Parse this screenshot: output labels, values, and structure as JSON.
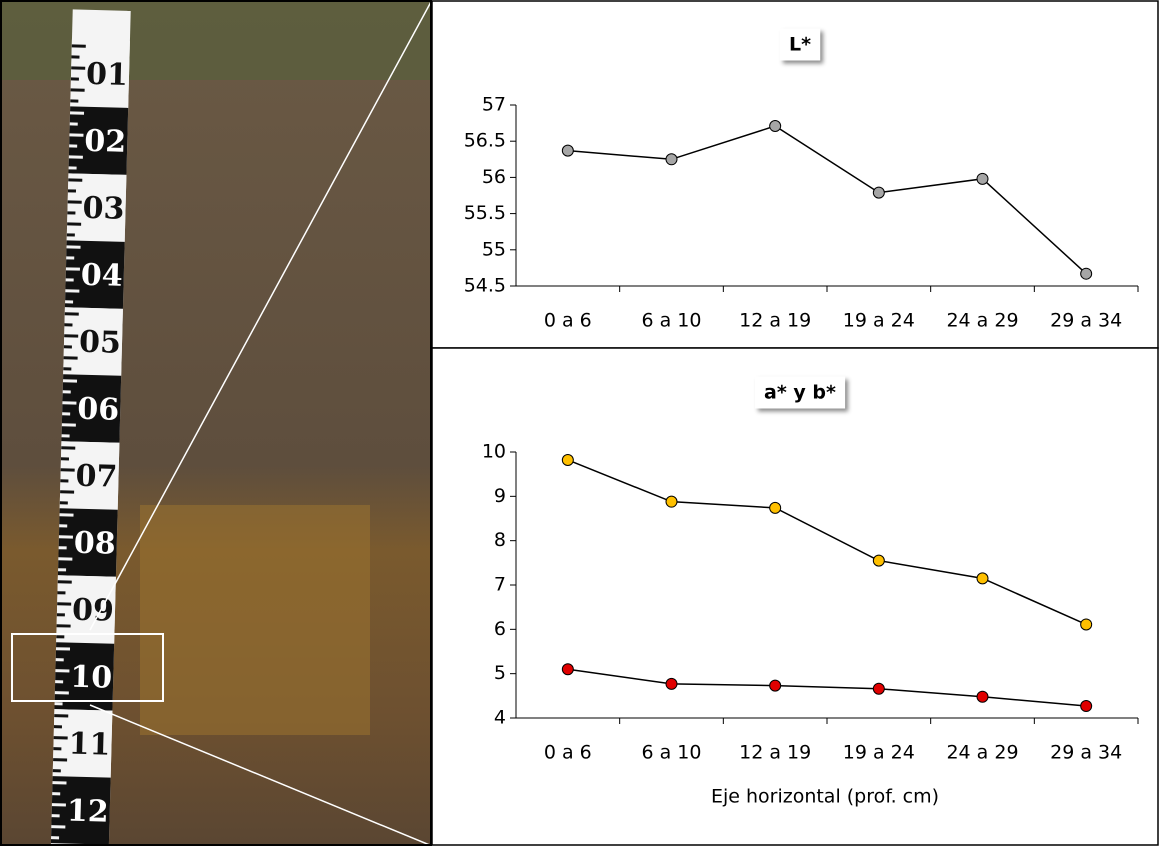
{
  "photo": {
    "scale_labels": [
      "01",
      "02",
      "03",
      "04",
      "05",
      "06",
      "07",
      "08",
      "09",
      "10",
      "11",
      "12"
    ]
  },
  "chart_data": [
    {
      "type": "line",
      "title": "L*",
      "categories": [
        "0 a 6",
        "6 a 10",
        "12 a 19",
        "19 a 24",
        "24 a 29",
        "29 a 34"
      ],
      "series": [
        {
          "color": "#a6a6a6",
          "values": [
            56.37,
            56.25,
            56.71,
            55.79,
            55.98,
            54.67
          ]
        }
      ],
      "ylim": [
        54.5,
        57
      ],
      "yticks": [
        54.5,
        55,
        55.5,
        56,
        56.5,
        57
      ]
    },
    {
      "type": "line",
      "title": "a* y b*",
      "x_label": "Eje horizontal (prof. cm)",
      "categories": [
        "0 a 6",
        "6 a 10",
        "12 a 19",
        "19 a 24",
        "24 a 29",
        "29 a 34"
      ],
      "series": [
        {
          "color": "#ffc000",
          "values": [
            9.82,
            8.88,
            8.74,
            7.55,
            7.15,
            6.11
          ]
        },
        {
          "color": "#e00000",
          "values": [
            5.1,
            4.77,
            4.73,
            4.66,
            4.48,
            4.27
          ]
        }
      ],
      "ylim": [
        4,
        10
      ],
      "yticks": [
        4,
        5,
        6,
        7,
        8,
        9,
        10
      ]
    }
  ]
}
